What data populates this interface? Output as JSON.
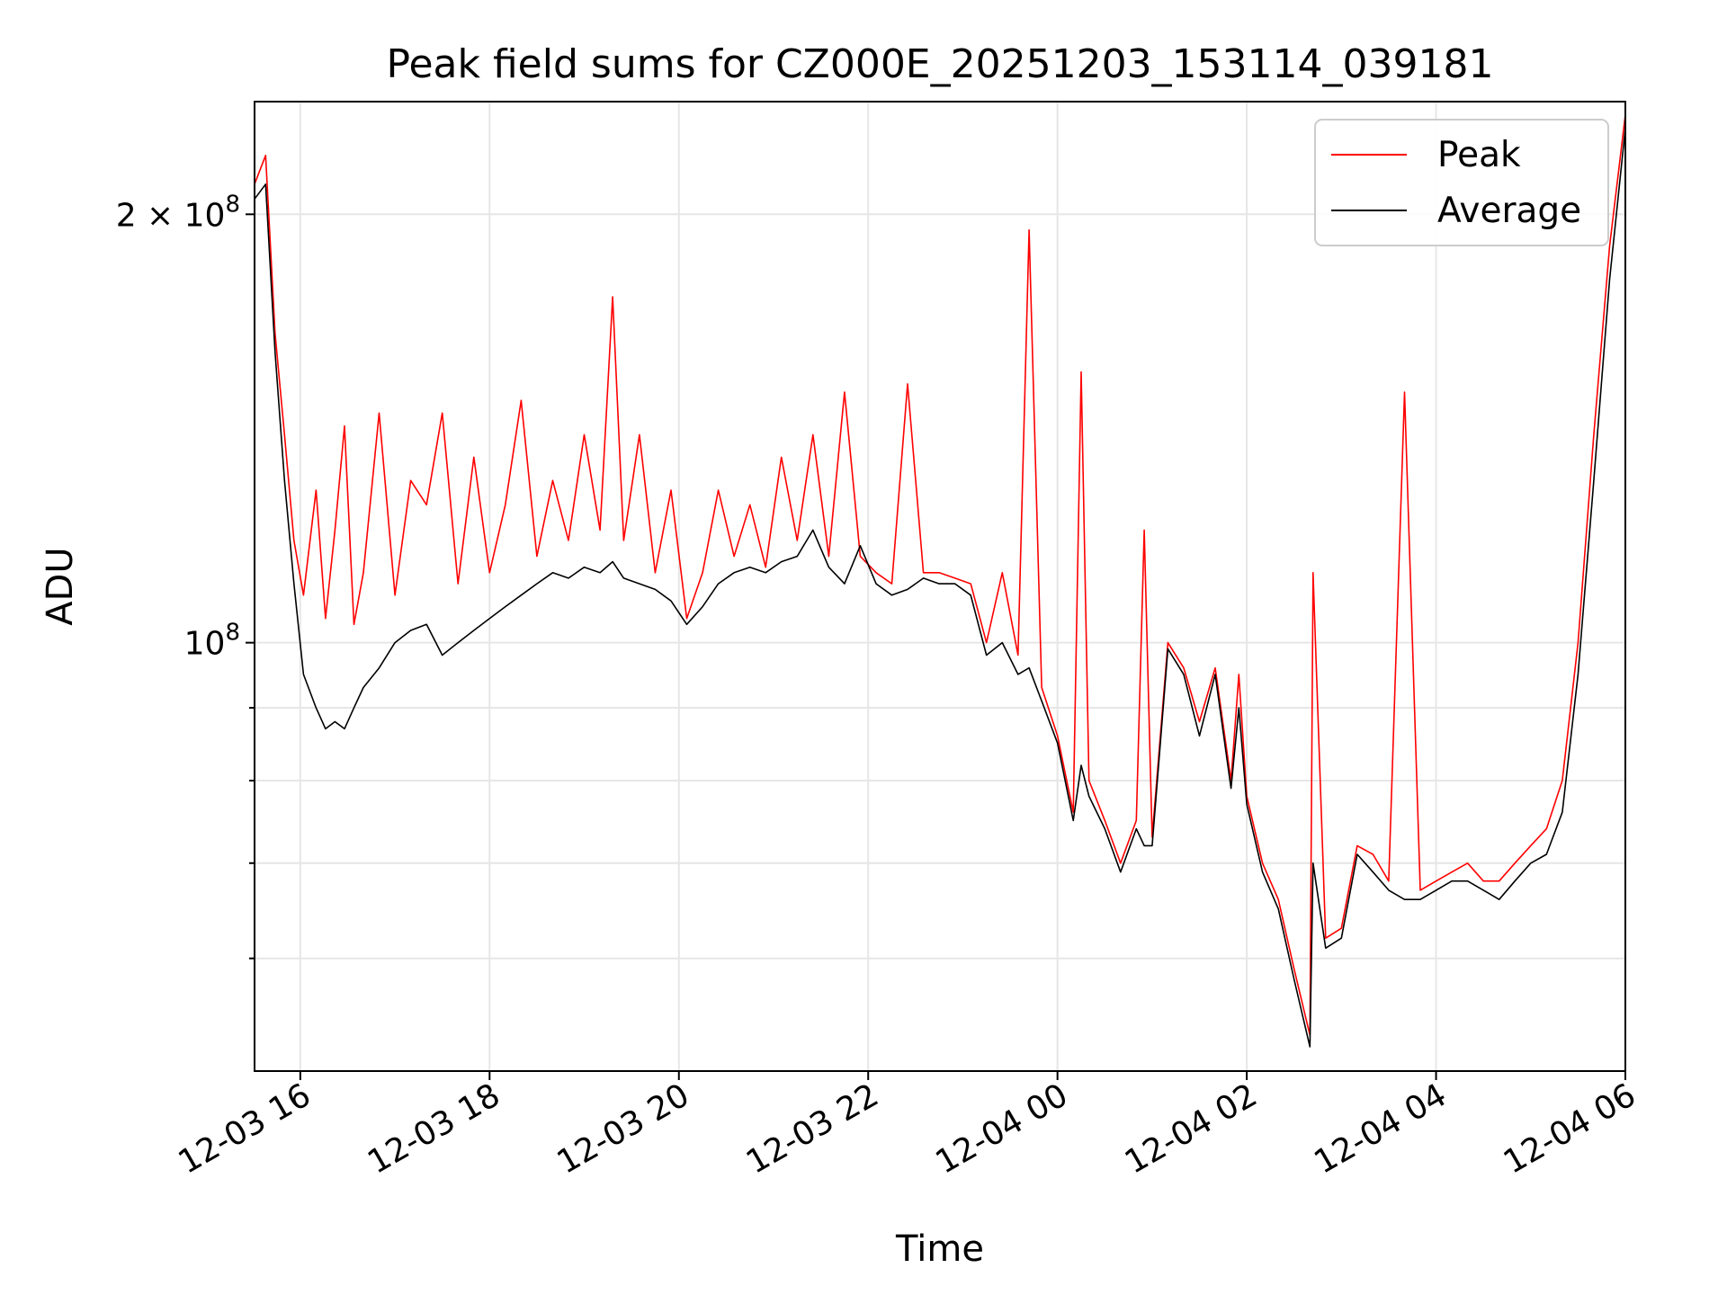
{
  "chart_data": {
    "type": "line",
    "title": "Peak field sums for CZ000E_20251203_153114_039181",
    "xlabel": "Time",
    "ylabel": "ADU",
    "y_scale": "log",
    "grid": true,
    "legend_position": "top-right",
    "xlim": [
      "2025-12-03T15:31",
      "2025-12-04T06:00"
    ],
    "ylim": [
      50000000,
      240000000
    ],
    "x_ticks": [
      {
        "value": "2025-12-03T16:00",
        "label": "12-03 16"
      },
      {
        "value": "2025-12-03T18:00",
        "label": "12-03 18"
      },
      {
        "value": "2025-12-03T20:00",
        "label": "12-03 20"
      },
      {
        "value": "2025-12-03T22:00",
        "label": "12-03 22"
      },
      {
        "value": "2025-12-04T00:00",
        "label": "12-04 00"
      },
      {
        "value": "2025-12-04T02:00",
        "label": "12-04 02"
      },
      {
        "value": "2025-12-04T04:00",
        "label": "12-04 04"
      },
      {
        "value": "2025-12-04T06:00",
        "label": "12-04 06"
      }
    ],
    "y_major_ticks": [
      {
        "value": 100000000,
        "base": "10",
        "exp": "8",
        "coef": ""
      },
      {
        "value": 200000000,
        "base": "10",
        "exp": "8",
        "coef": "2 × "
      }
    ],
    "y_minor_ticks": [
      60000000,
      70000000,
      80000000,
      90000000
    ],
    "series": [
      {
        "name": "Peak",
        "color": "#ff0000",
        "points": [
          [
            "2025-12-03T15:31",
            210000000
          ],
          [
            "2025-12-03T15:38",
            220000000
          ],
          [
            "2025-12-03T15:44",
            165000000
          ],
          [
            "2025-12-03T15:50",
            140000000
          ],
          [
            "2025-12-03T15:56",
            118000000
          ],
          [
            "2025-12-03T16:02",
            108000000
          ],
          [
            "2025-12-03T16:10",
            128000000
          ],
          [
            "2025-12-03T16:16",
            104000000
          ],
          [
            "2025-12-03T16:22",
            120000000
          ],
          [
            "2025-12-03T16:28",
            142000000
          ],
          [
            "2025-12-03T16:34",
            103000000
          ],
          [
            "2025-12-03T16:40",
            112000000
          ],
          [
            "2025-12-03T16:50",
            145000000
          ],
          [
            "2025-12-03T17:00",
            108000000
          ],
          [
            "2025-12-03T17:10",
            130000000
          ],
          [
            "2025-12-03T17:20",
            125000000
          ],
          [
            "2025-12-03T17:30",
            145000000
          ],
          [
            "2025-12-03T17:40",
            110000000
          ],
          [
            "2025-12-03T17:50",
            135000000
          ],
          [
            "2025-12-03T18:00",
            112000000
          ],
          [
            "2025-12-03T18:10",
            125000000
          ],
          [
            "2025-12-03T18:20",
            148000000
          ],
          [
            "2025-12-03T18:30",
            115000000
          ],
          [
            "2025-12-03T18:40",
            130000000
          ],
          [
            "2025-12-03T18:50",
            118000000
          ],
          [
            "2025-12-03T19:00",
            140000000
          ],
          [
            "2025-12-03T19:10",
            120000000
          ],
          [
            "2025-12-03T19:18",
            175000000
          ],
          [
            "2025-12-03T19:25",
            118000000
          ],
          [
            "2025-12-03T19:35",
            140000000
          ],
          [
            "2025-12-03T19:45",
            112000000
          ],
          [
            "2025-12-03T19:55",
            128000000
          ],
          [
            "2025-12-03T20:05",
            104000000
          ],
          [
            "2025-12-03T20:15",
            112000000
          ],
          [
            "2025-12-03T20:25",
            128000000
          ],
          [
            "2025-12-03T20:35",
            115000000
          ],
          [
            "2025-12-03T20:45",
            125000000
          ],
          [
            "2025-12-03T20:55",
            113000000
          ],
          [
            "2025-12-03T21:05",
            135000000
          ],
          [
            "2025-12-03T21:15",
            118000000
          ],
          [
            "2025-12-03T21:25",
            140000000
          ],
          [
            "2025-12-03T21:35",
            115000000
          ],
          [
            "2025-12-03T21:45",
            150000000
          ],
          [
            "2025-12-03T21:55",
            115000000
          ],
          [
            "2025-12-03T22:05",
            112000000
          ],
          [
            "2025-12-03T22:15",
            110000000
          ],
          [
            "2025-12-03T22:25",
            152000000
          ],
          [
            "2025-12-03T22:35",
            112000000
          ],
          [
            "2025-12-03T22:45",
            112000000
          ],
          [
            "2025-12-03T22:55",
            111000000
          ],
          [
            "2025-12-03T23:05",
            110000000
          ],
          [
            "2025-12-03T23:15",
            100000000
          ],
          [
            "2025-12-03T23:25",
            112000000
          ],
          [
            "2025-12-03T23:35",
            98000000
          ],
          [
            "2025-12-03T23:42",
            195000000
          ],
          [
            "2025-12-03T23:50",
            93000000
          ],
          [
            "2025-12-04T00:00",
            86000000
          ],
          [
            "2025-12-04T00:10",
            76000000
          ],
          [
            "2025-12-04T00:15",
            155000000
          ],
          [
            "2025-12-04T00:20",
            80000000
          ],
          [
            "2025-12-04T00:30",
            75000000
          ],
          [
            "2025-12-04T00:40",
            70000000
          ],
          [
            "2025-12-04T00:50",
            75000000
          ],
          [
            "2025-12-04T00:55",
            120000000
          ],
          [
            "2025-12-04T01:00",
            73000000
          ],
          [
            "2025-12-04T01:10",
            100000000
          ],
          [
            "2025-12-04T01:20",
            96000000
          ],
          [
            "2025-12-04T01:30",
            88000000
          ],
          [
            "2025-12-04T01:40",
            96000000
          ],
          [
            "2025-12-04T01:50",
            80000000
          ],
          [
            "2025-12-04T01:55",
            95000000
          ],
          [
            "2025-12-04T02:00",
            78000000
          ],
          [
            "2025-12-04T02:10",
            70000000
          ],
          [
            "2025-12-04T02:20",
            66000000
          ],
          [
            "2025-12-04T02:30",
            59000000
          ],
          [
            "2025-12-04T02:40",
            53000000
          ],
          [
            "2025-12-04T02:42",
            112000000
          ],
          [
            "2025-12-04T02:50",
            62000000
          ],
          [
            "2025-12-04T03:00",
            63000000
          ],
          [
            "2025-12-04T03:10",
            72000000
          ],
          [
            "2025-12-04T03:20",
            71000000
          ],
          [
            "2025-12-04T03:30",
            68000000
          ],
          [
            "2025-12-04T03:40",
            150000000
          ],
          [
            "2025-12-04T03:50",
            67000000
          ],
          [
            "2025-12-04T04:00",
            68000000
          ],
          [
            "2025-12-04T04:10",
            69000000
          ],
          [
            "2025-12-04T04:20",
            70000000
          ],
          [
            "2025-12-04T04:30",
            68000000
          ],
          [
            "2025-12-04T04:40",
            68000000
          ],
          [
            "2025-12-04T04:50",
            70000000
          ],
          [
            "2025-12-04T05:00",
            72000000
          ],
          [
            "2025-12-04T05:10",
            74000000
          ],
          [
            "2025-12-04T05:20",
            80000000
          ],
          [
            "2025-12-04T05:30",
            100000000
          ],
          [
            "2025-12-04T05:40",
            140000000
          ],
          [
            "2025-12-04T05:50",
            190000000
          ],
          [
            "2025-12-04T06:00",
            235000000
          ]
        ]
      },
      {
        "name": "Average",
        "color": "#000000",
        "points": [
          [
            "2025-12-03T15:31",
            205000000
          ],
          [
            "2025-12-03T15:38",
            210000000
          ],
          [
            "2025-12-03T15:44",
            160000000
          ],
          [
            "2025-12-03T15:50",
            130000000
          ],
          [
            "2025-12-03T15:56",
            110000000
          ],
          [
            "2025-12-03T16:02",
            95000000
          ],
          [
            "2025-12-03T16:10",
            90000000
          ],
          [
            "2025-12-03T16:16",
            87000000
          ],
          [
            "2025-12-03T16:22",
            88000000
          ],
          [
            "2025-12-03T16:28",
            87000000
          ],
          [
            "2025-12-03T16:34",
            90000000
          ],
          [
            "2025-12-03T16:40",
            93000000
          ],
          [
            "2025-12-03T16:50",
            96000000
          ],
          [
            "2025-12-03T17:00",
            100000000
          ],
          [
            "2025-12-03T17:10",
            102000000
          ],
          [
            "2025-12-03T17:20",
            103000000
          ],
          [
            "2025-12-03T17:30",
            98000000
          ],
          [
            "2025-12-03T17:40",
            100000000
          ],
          [
            "2025-12-03T17:50",
            102000000
          ],
          [
            "2025-12-03T18:00",
            104000000
          ],
          [
            "2025-12-03T18:10",
            106000000
          ],
          [
            "2025-12-03T18:20",
            108000000
          ],
          [
            "2025-12-03T18:30",
            110000000
          ],
          [
            "2025-12-03T18:40",
            112000000
          ],
          [
            "2025-12-03T18:50",
            111000000
          ],
          [
            "2025-12-03T19:00",
            113000000
          ],
          [
            "2025-12-03T19:10",
            112000000
          ],
          [
            "2025-12-03T19:18",
            114000000
          ],
          [
            "2025-12-03T19:25",
            111000000
          ],
          [
            "2025-12-03T19:35",
            110000000
          ],
          [
            "2025-12-03T19:45",
            109000000
          ],
          [
            "2025-12-03T19:55",
            107000000
          ],
          [
            "2025-12-03T20:05",
            103000000
          ],
          [
            "2025-12-03T20:15",
            106000000
          ],
          [
            "2025-12-03T20:25",
            110000000
          ],
          [
            "2025-12-03T20:35",
            112000000
          ],
          [
            "2025-12-03T20:45",
            113000000
          ],
          [
            "2025-12-03T20:55",
            112000000
          ],
          [
            "2025-12-03T21:05",
            114000000
          ],
          [
            "2025-12-03T21:15",
            115000000
          ],
          [
            "2025-12-03T21:25",
            120000000
          ],
          [
            "2025-12-03T21:35",
            113000000
          ],
          [
            "2025-12-03T21:45",
            110000000
          ],
          [
            "2025-12-03T21:55",
            117000000
          ],
          [
            "2025-12-03T22:05",
            110000000
          ],
          [
            "2025-12-03T22:15",
            108000000
          ],
          [
            "2025-12-03T22:25",
            109000000
          ],
          [
            "2025-12-03T22:35",
            111000000
          ],
          [
            "2025-12-03T22:45",
            110000000
          ],
          [
            "2025-12-03T22:55",
            110000000
          ],
          [
            "2025-12-03T23:05",
            108000000
          ],
          [
            "2025-12-03T23:15",
            98000000
          ],
          [
            "2025-12-03T23:25",
            100000000
          ],
          [
            "2025-12-03T23:35",
            95000000
          ],
          [
            "2025-12-03T23:42",
            96000000
          ],
          [
            "2025-12-03T23:50",
            91000000
          ],
          [
            "2025-12-04T00:00",
            85000000
          ],
          [
            "2025-12-04T00:10",
            75000000
          ],
          [
            "2025-12-04T00:15",
            82000000
          ],
          [
            "2025-12-04T00:20",
            78000000
          ],
          [
            "2025-12-04T00:30",
            74000000
          ],
          [
            "2025-12-04T00:40",
            69000000
          ],
          [
            "2025-12-04T00:50",
            74000000
          ],
          [
            "2025-12-04T00:55",
            72000000
          ],
          [
            "2025-12-04T01:00",
            72000000
          ],
          [
            "2025-12-04T01:10",
            99000000
          ],
          [
            "2025-12-04T01:20",
            95000000
          ],
          [
            "2025-12-04T01:30",
            86000000
          ],
          [
            "2025-12-04T01:40",
            95000000
          ],
          [
            "2025-12-04T01:50",
            79000000
          ],
          [
            "2025-12-04T01:55",
            90000000
          ],
          [
            "2025-12-04T02:00",
            77000000
          ],
          [
            "2025-12-04T02:10",
            69000000
          ],
          [
            "2025-12-04T02:20",
            65000000
          ],
          [
            "2025-12-04T02:30",
            58000000
          ],
          [
            "2025-12-04T02:40",
            52000000
          ],
          [
            "2025-12-04T02:42",
            70000000
          ],
          [
            "2025-12-04T02:50",
            61000000
          ],
          [
            "2025-12-04T03:00",
            62000000
          ],
          [
            "2025-12-04T03:10",
            71000000
          ],
          [
            "2025-12-04T03:20",
            69000000
          ],
          [
            "2025-12-04T03:30",
            67000000
          ],
          [
            "2025-12-04T03:40",
            66000000
          ],
          [
            "2025-12-04T03:50",
            66000000
          ],
          [
            "2025-12-04T04:00",
            67000000
          ],
          [
            "2025-12-04T04:10",
            68000000
          ],
          [
            "2025-12-04T04:20",
            68000000
          ],
          [
            "2025-12-04T04:30",
            67000000
          ],
          [
            "2025-12-04T04:40",
            66000000
          ],
          [
            "2025-12-04T04:50",
            68000000
          ],
          [
            "2025-12-04T05:00",
            70000000
          ],
          [
            "2025-12-04T05:10",
            71000000
          ],
          [
            "2025-12-04T05:20",
            76000000
          ],
          [
            "2025-12-04T05:30",
            95000000
          ],
          [
            "2025-12-04T05:40",
            130000000
          ],
          [
            "2025-12-04T05:50",
            180000000
          ],
          [
            "2025-12-04T06:00",
            230000000
          ]
        ]
      }
    ]
  }
}
